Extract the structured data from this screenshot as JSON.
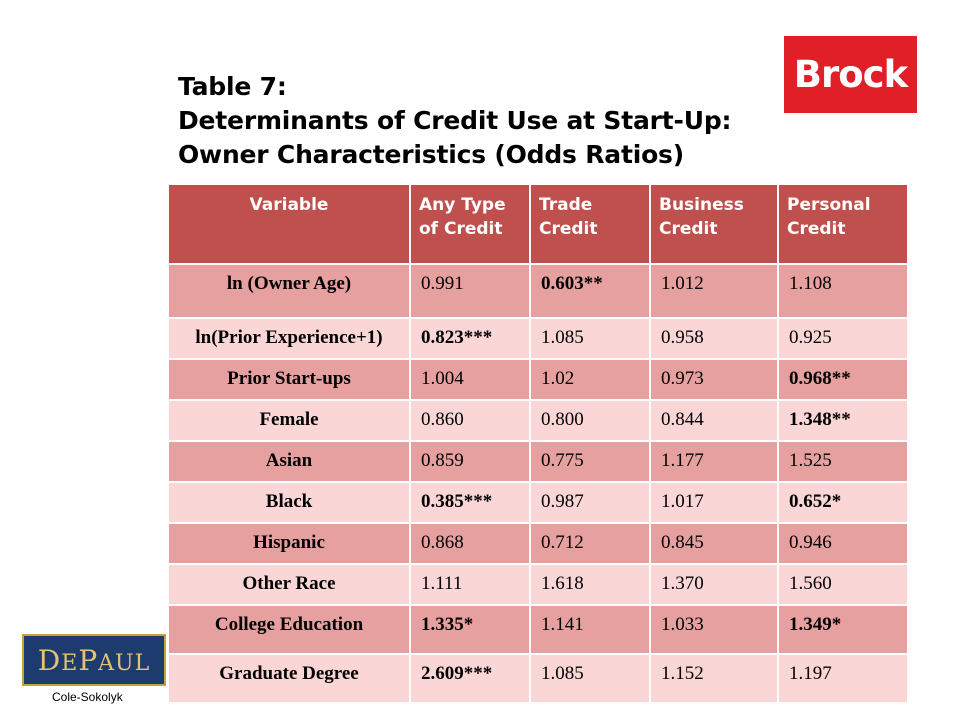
{
  "title": {
    "line1": "Table 7:",
    "line2": "Determinants of Credit Use at Start-Up:",
    "line3": "Owner Characteristics (Odds Ratios)"
  },
  "logos": {
    "brock": "Brock",
    "depaul": "DePaul"
  },
  "footer": {
    "credit": "Cole-Sokolyk"
  },
  "table": {
    "headers": {
      "variable": "Variable",
      "any_type": [
        "Any Type",
        "of Credit"
      ],
      "trade": [
        "Trade",
        "Credit"
      ],
      "business": [
        "Business",
        "Credit"
      ],
      "personal": [
        "Personal",
        "Credit"
      ]
    },
    "rows": [
      {
        "label": "ln (Owner Age)",
        "values": [
          "0.991",
          "0.603**",
          "1.012",
          "1.108"
        ],
        "bold": [
          false,
          true,
          false,
          false
        ]
      },
      {
        "label": "ln(Prior Experience+1)",
        "values": [
          "0.823***",
          "1.085",
          "0.958",
          "0.925"
        ],
        "bold": [
          true,
          false,
          false,
          false
        ]
      },
      {
        "label": "Prior Start-ups",
        "values": [
          "1.004",
          "1.02",
          "0.973",
          "0.968**"
        ],
        "bold": [
          false,
          false,
          false,
          true
        ]
      },
      {
        "label": "Female",
        "values": [
          "0.860",
          "0.800",
          "0.844",
          "1.348**"
        ],
        "bold": [
          false,
          false,
          false,
          true
        ]
      },
      {
        "label": "Asian",
        "values": [
          "0.859",
          "0.775",
          "1.177",
          "1.525"
        ],
        "bold": [
          false,
          false,
          false,
          false
        ]
      },
      {
        "label": "Black",
        "values": [
          "0.385***",
          "0.987",
          "1.017",
          "0.652*"
        ],
        "bold": [
          true,
          false,
          false,
          true
        ]
      },
      {
        "label": "Hispanic",
        "values": [
          "0.868",
          "0.712",
          "0.845",
          "0.946"
        ],
        "bold": [
          false,
          false,
          false,
          false
        ]
      },
      {
        "label": "Other Race",
        "values": [
          "1.111",
          "1.618",
          "1.370",
          "1.560"
        ],
        "bold": [
          false,
          false,
          false,
          false
        ]
      },
      {
        "label": "College Education",
        "values": [
          "1.335*",
          "1.141",
          "1.033",
          "1.349*"
        ],
        "bold": [
          true,
          false,
          false,
          true
        ]
      },
      {
        "label": "Graduate Degree",
        "values": [
          "2.609***",
          "1.085",
          "1.152",
          "1.197"
        ],
        "bold": [
          true,
          false,
          false,
          false
        ]
      }
    ]
  },
  "colors": {
    "header": "#c0504d",
    "row_dark": "#e6a09f",
    "row_light": "#fbd6d6",
    "brock_red": "#e01f26",
    "depaul_blue": "#1d3b6f"
  }
}
